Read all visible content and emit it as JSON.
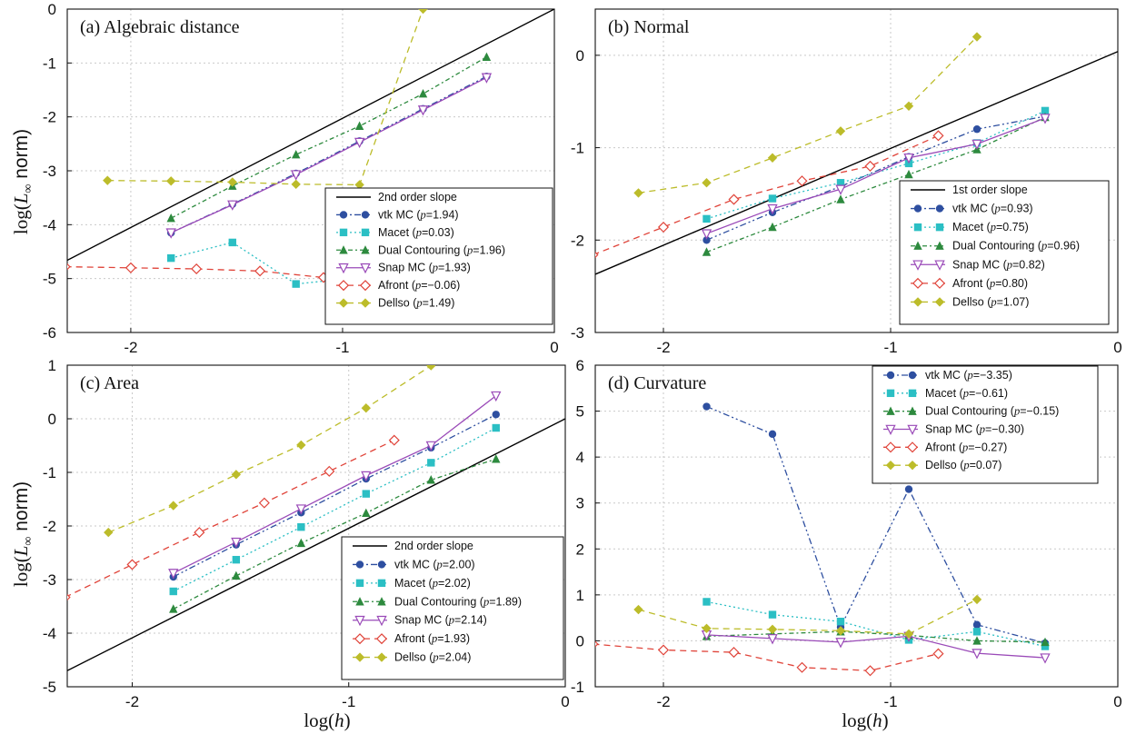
{
  "colors": {
    "vtk": "#2e4fa0",
    "macet": "#2bbfc4",
    "dual": "#2d8a3e",
    "snap": "#9a4ab8",
    "afront": "#e0443a",
    "dellso": "#bcbc2a",
    "slope": "#000000"
  },
  "axis_labels": {
    "y_prefix": "log(",
    "y_symbol": "L",
    "y_sub": "∞",
    "y_suffix": "  norm)",
    "x_prefix": "log(",
    "x_symbol": "h",
    "x_suffix": ")"
  },
  "chart_data": [
    {
      "id": "a",
      "type": "line",
      "title": "(a) Algebraic distance",
      "xlim": [
        -2.3,
        0
      ],
      "ylim": [
        -6,
        0
      ],
      "xticks": [
        -2,
        -1,
        0
      ],
      "yticks": [
        0,
        -1,
        -2,
        -3,
        -4,
        -5,
        -6
      ],
      "legend_position": "bottom-right",
      "slope": {
        "label": "2nd order slope",
        "x": [
          -2.3,
          0
        ],
        "y": [
          -4.66,
          0
        ]
      },
      "series": [
        {
          "key": "vtk",
          "name": "vtk MC",
          "p": "1.94",
          "x": [
            -1.81,
            -1.52,
            -1.22,
            -0.92,
            -0.62,
            -0.32
          ],
          "y": [
            -4.15,
            -3.62,
            -3.05,
            -2.45,
            -1.85,
            -1.25
          ]
        },
        {
          "key": "macet",
          "name": "Macet",
          "p": "0.03",
          "x": [
            -1.81,
            -1.52,
            -1.22,
            -0.92
          ],
          "y": [
            -4.62,
            -4.33,
            -5.1,
            -4.98
          ]
        },
        {
          "key": "dual",
          "name": "Dual Contouring",
          "p": "1.96",
          "x": [
            -1.81,
            -1.52,
            -1.22,
            -0.92,
            -0.62,
            -0.32
          ],
          "y": [
            -3.88,
            -3.28,
            -2.7,
            -2.17,
            -1.57,
            -0.89
          ]
        },
        {
          "key": "snap",
          "name": "Snap MC",
          "p": "1.93",
          "x": [
            -1.81,
            -1.52,
            -1.22,
            -0.92,
            -0.62,
            -0.32
          ],
          "y": [
            -4.15,
            -3.63,
            -3.07,
            -2.47,
            -1.87,
            -1.27
          ]
        },
        {
          "key": "afront",
          "name": "Afront",
          "p": "−0.06",
          "x": [
            -2.31,
            -2.0,
            -1.69,
            -1.39,
            -1.09
          ],
          "y": [
            -4.78,
            -4.8,
            -4.82,
            -4.86,
            -4.98
          ]
        },
        {
          "key": "dellso",
          "name": "Dellso",
          "p": "1.49",
          "x": [
            -2.11,
            -1.81,
            -1.52,
            -1.22,
            -0.92,
            -0.62
          ],
          "y": [
            -3.18,
            -3.19,
            -3.21,
            -3.25,
            -3.26,
            0.0
          ]
        }
      ]
    },
    {
      "id": "b",
      "type": "line",
      "title": "(b) Normal",
      "xlim": [
        -2.3,
        0
      ],
      "ylim": [
        -3,
        0.5
      ],
      "xticks": [
        -2,
        -1,
        0
      ],
      "yticks": [
        0,
        -1,
        -2,
        -3
      ],
      "legend_position": "bottom-right",
      "slope": {
        "label": "1st order slope",
        "x": [
          -2.3,
          0
        ],
        "y": [
          -2.37,
          0.04
        ]
      },
      "series": [
        {
          "key": "vtk",
          "name": "vtk MC",
          "p": "0.93",
          "x": [
            -1.81,
            -1.52,
            -1.22,
            -0.92,
            -0.62,
            -0.32
          ],
          "y": [
            -2.0,
            -1.7,
            -1.42,
            -1.1,
            -0.8,
            -0.66
          ]
        },
        {
          "key": "macet",
          "name": "Macet",
          "p": "0.75",
          "x": [
            -1.81,
            -1.52,
            -1.22,
            -0.92,
            -0.62,
            -0.32
          ],
          "y": [
            -1.77,
            -1.55,
            -1.38,
            -1.17,
            -0.95,
            -0.6
          ]
        },
        {
          "key": "dual",
          "name": "Dual Contouring",
          "p": "0.96",
          "x": [
            -1.81,
            -1.52,
            -1.22,
            -0.92,
            -0.62,
            -0.32
          ],
          "y": [
            -2.13,
            -1.86,
            -1.56,
            -1.29,
            -1.02,
            -0.67
          ]
        },
        {
          "key": "snap",
          "name": "Snap MC",
          "p": "0.82",
          "x": [
            -1.81,
            -1.52,
            -1.22,
            -0.92,
            -0.62,
            -0.32
          ],
          "y": [
            -1.93,
            -1.66,
            -1.45,
            -1.11,
            -0.96,
            -0.68
          ]
        },
        {
          "key": "afront",
          "name": "Afront",
          "p": "0.80",
          "x": [
            -2.31,
            -2.0,
            -1.69,
            -1.39,
            -1.09,
            -0.79
          ],
          "y": [
            -2.16,
            -1.86,
            -1.56,
            -1.36,
            -1.2,
            -0.87
          ]
        },
        {
          "key": "dellso",
          "name": "Dellso",
          "p": "1.07",
          "x": [
            -2.11,
            -1.81,
            -1.52,
            -1.22,
            -0.92,
            -0.62
          ],
          "y": [
            -1.49,
            -1.38,
            -1.11,
            -0.82,
            -0.55,
            0.2
          ]
        }
      ]
    },
    {
      "id": "c",
      "type": "line",
      "title": "(c) Area",
      "xlim": [
        -2.3,
        0
      ],
      "ylim": [
        -5,
        1
      ],
      "xticks": [
        -2,
        -1,
        0
      ],
      "yticks": [
        1,
        0,
        -1,
        -2,
        -3,
        -4,
        -5
      ],
      "legend_position": "bottom-right",
      "slope": {
        "label": "2nd order slope",
        "x": [
          -2.3,
          0
        ],
        "y": [
          -4.7,
          0.0
        ]
      },
      "series": [
        {
          "key": "vtk",
          "name": "vtk MC",
          "p": "2.00",
          "x": [
            -1.81,
            -1.52,
            -1.22,
            -0.92,
            -0.62,
            -0.32
          ],
          "y": [
            -2.95,
            -2.35,
            -1.75,
            -1.12,
            -0.54,
            0.08
          ]
        },
        {
          "key": "macet",
          "name": "Macet",
          "p": "2.02",
          "x": [
            -1.81,
            -1.52,
            -1.22,
            -0.92,
            -0.62,
            -0.32
          ],
          "y": [
            -3.22,
            -2.63,
            -2.02,
            -1.4,
            -0.82,
            -0.17
          ]
        },
        {
          "key": "dual",
          "name": "Dual Contouring",
          "p": "1.89",
          "x": [
            -1.81,
            -1.52,
            -1.22,
            -0.92,
            -0.62,
            -0.32
          ],
          "y": [
            -3.55,
            -2.93,
            -2.32,
            -1.76,
            -1.14,
            -0.75
          ]
        },
        {
          "key": "snap",
          "name": "Snap MC",
          "p": "2.14",
          "x": [
            -1.81,
            -1.52,
            -1.22,
            -0.92,
            -0.62,
            -0.32
          ],
          "y": [
            -2.88,
            -2.3,
            -1.68,
            -1.06,
            -0.5,
            0.43
          ]
        },
        {
          "key": "afront",
          "name": "Afront",
          "p": "1.93",
          "x": [
            -2.31,
            -2.0,
            -1.69,
            -1.39,
            -1.09,
            -0.79
          ],
          "y": [
            -3.33,
            -2.72,
            -2.12,
            -1.57,
            -0.98,
            -0.4
          ]
        },
        {
          "key": "dellso",
          "name": "Dellso",
          "p": "2.04",
          "x": [
            -2.11,
            -1.81,
            -1.52,
            -1.22,
            -0.92,
            -0.62
          ],
          "y": [
            -2.12,
            -1.62,
            -1.04,
            -0.49,
            0.2,
            0.99
          ]
        }
      ]
    },
    {
      "id": "d",
      "type": "line",
      "title": "(d) Curvature",
      "xlim": [
        -2.3,
        0
      ],
      "ylim": [
        -1,
        6
      ],
      "xticks": [
        -2,
        -1,
        0
      ],
      "yticks": [
        6,
        5,
        4,
        3,
        2,
        1,
        0,
        -1
      ],
      "legend_position": "top-right",
      "slope": null,
      "series": [
        {
          "key": "vtk",
          "name": "vtk MC",
          "p": "−3.35",
          "x": [
            -1.81,
            -1.52,
            -1.22,
            -0.92,
            -0.62,
            -0.32
          ],
          "y": [
            5.1,
            4.5,
            0.3,
            3.3,
            0.35,
            -0.05
          ]
        },
        {
          "key": "macet",
          "name": "Macet",
          "p": "−0.61",
          "x": [
            -1.81,
            -1.52,
            -1.22,
            -0.92,
            -0.62,
            -0.32
          ],
          "y": [
            0.85,
            0.57,
            0.42,
            0.02,
            0.2,
            -0.12
          ]
        },
        {
          "key": "dual",
          "name": "Dual Contouring",
          "p": "−0.15",
          "x": [
            -1.81,
            -1.52,
            -1.22,
            -0.92,
            -0.62,
            -0.32
          ],
          "y": [
            0.1,
            0.15,
            0.2,
            0.12,
            0.0,
            -0.03
          ]
        },
        {
          "key": "snap",
          "name": "Snap MC",
          "p": "−0.30",
          "x": [
            -1.81,
            -1.52,
            -1.22,
            -0.92,
            -0.62,
            -0.32
          ],
          "y": [
            0.13,
            0.05,
            -0.03,
            0.1,
            -0.27,
            -0.37
          ]
        },
        {
          "key": "afront",
          "name": "Afront",
          "p": "−0.27",
          "x": [
            -2.31,
            -2.0,
            -1.69,
            -1.39,
            -1.09,
            -0.79
          ],
          "y": [
            -0.07,
            -0.2,
            -0.25,
            -0.58,
            -0.65,
            -0.28
          ]
        },
        {
          "key": "dellso",
          "name": "Dellso",
          "p": "0.07",
          "x": [
            -2.11,
            -1.81,
            -1.52,
            -1.22,
            -0.92,
            -0.62
          ],
          "y": [
            0.68,
            0.27,
            0.25,
            0.22,
            0.15,
            0.9
          ]
        }
      ]
    }
  ]
}
